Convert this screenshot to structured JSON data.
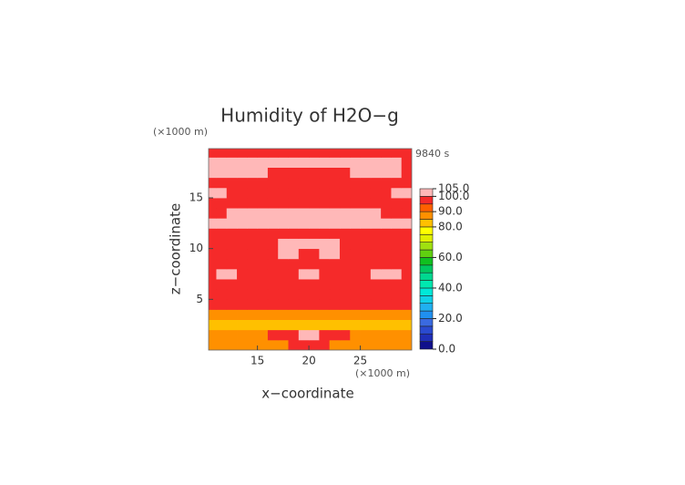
{
  "chart_data": {
    "type": "contour",
    "title": "Humidity of H2O−g",
    "time_label": "9840 s",
    "x_label": "x−coordinate",
    "y_label": "z−coordinate",
    "x_unit": "(×1000 m)",
    "y_unit": "(×1000 m)",
    "xlim": [
      10.25,
      30
    ],
    "ylim": [
      0,
      19.85
    ],
    "xticks": [
      15,
      20,
      25
    ],
    "yticks": [
      5,
      10,
      15
    ],
    "x": [
      10.5,
      11.5,
      12.5,
      13.5,
      14.5,
      15.5,
      16.5,
      17.5,
      18.5,
      19.5,
      20.5,
      21.5,
      22.5,
      23.5,
      24.5,
      25.5,
      26.5,
      27.5,
      28.5,
      29.5
    ],
    "y": [
      0.5,
      1.5,
      2.5,
      3.5,
      4.5,
      5.5,
      6.5,
      7.5,
      8.5,
      9.5,
      10.5,
      11.5,
      12.5,
      13.5,
      14.5,
      15.5,
      16.5,
      17.5,
      18.5,
      19.5
    ],
    "z": [
      [
        87,
        87,
        87,
        87,
        87,
        87,
        87,
        87,
        97,
        97,
        97,
        97,
        87,
        87,
        87,
        87,
        87,
        87,
        87,
        87
      ],
      [
        87,
        87,
        87,
        87,
        87,
        87,
        97,
        97,
        97,
        102,
        102,
        97,
        97,
        97,
        87,
        87,
        87,
        87,
        87,
        87
      ],
      [
        82,
        82,
        82,
        82,
        82,
        82,
        82,
        82,
        82,
        82,
        82,
        82,
        82,
        82,
        82,
        82,
        82,
        82,
        82,
        82
      ],
      [
        87,
        87,
        87,
        87,
        87,
        87,
        87,
        87,
        87,
        87,
        87,
        87,
        87,
        87,
        87,
        87,
        87,
        87,
        87,
        87
      ],
      [
        97,
        97,
        97,
        97,
        97,
        97,
        97,
        97,
        97,
        97,
        97,
        97,
        97,
        97,
        97,
        97,
        97,
        97,
        97,
        97
      ],
      [
        97,
        97,
        97,
        97,
        97,
        97,
        97,
        97,
        97,
        97,
        97,
        97,
        97,
        97,
        97,
        97,
        97,
        97,
        97,
        97
      ],
      [
        97,
        97,
        97,
        97,
        97,
        97,
        97,
        97,
        97,
        97,
        97,
        97,
        97,
        97,
        97,
        97,
        97,
        97,
        97,
        97
      ],
      [
        97,
        102,
        102,
        97,
        97,
        97,
        97,
        97,
        97,
        102,
        102,
        97,
        97,
        97,
        97,
        97,
        102,
        102,
        102,
        97
      ],
      [
        97,
        97,
        97,
        97,
        97,
        97,
        97,
        97,
        97,
        97,
        97,
        97,
        97,
        97,
        97,
        97,
        97,
        97,
        97,
        97
      ],
      [
        97,
        97,
        97,
        97,
        97,
        97,
        97,
        102,
        102,
        97,
        97,
        102,
        102,
        97,
        97,
        97,
        97,
        97,
        97,
        97
      ],
      [
        97,
        97,
        97,
        97,
        97,
        97,
        97,
        102,
        102,
        102,
        102,
        102,
        102,
        97,
        97,
        97,
        97,
        97,
        97,
        97
      ],
      [
        97,
        97,
        97,
        97,
        97,
        97,
        97,
        97,
        97,
        97,
        97,
        97,
        97,
        97,
        97,
        97,
        97,
        97,
        97,
        97
      ],
      [
        102,
        102,
        102,
        102,
        102,
        102,
        102,
        102,
        102,
        102,
        102,
        102,
        102,
        102,
        102,
        102,
        102,
        102,
        102,
        102
      ],
      [
        97,
        97,
        102,
        102,
        102,
        102,
        102,
        102,
        102,
        102,
        102,
        102,
        102,
        102,
        102,
        102,
        102,
        97,
        97,
        97
      ],
      [
        97,
        97,
        97,
        97,
        97,
        97,
        97,
        97,
        97,
        97,
        97,
        97,
        97,
        97,
        97,
        97,
        97,
        97,
        97,
        97
      ],
      [
        102,
        102,
        97,
        97,
        97,
        97,
        97,
        97,
        97,
        97,
        97,
        97,
        97,
        97,
        97,
        97,
        97,
        97,
        102,
        102
      ],
      [
        97,
        97,
        97,
        97,
        97,
        97,
        97,
        97,
        97,
        97,
        97,
        97,
        97,
        97,
        97,
        97,
        97,
        97,
        97,
        97
      ],
      [
        102,
        102,
        102,
        102,
        102,
        102,
        97,
        97,
        97,
        97,
        97,
        97,
        97,
        97,
        102,
        102,
        102,
        102,
        102,
        97
      ],
      [
        102,
        102,
        102,
        102,
        102,
        102,
        102,
        102,
        102,
        102,
        102,
        102,
        102,
        102,
        102,
        102,
        102,
        102,
        102,
        97
      ],
      [
        97,
        97,
        97,
        97,
        97,
        97,
        97,
        97,
        97,
        97,
        97,
        97,
        97,
        97,
        97,
        97,
        97,
        97,
        97,
        97
      ]
    ],
    "colorbar": {
      "levels": [
        0,
        5,
        10,
        15,
        20,
        25,
        30,
        35,
        40,
        45,
        50,
        55,
        60,
        65,
        70,
        75,
        80,
        85,
        90,
        95,
        100,
        105
      ],
      "colors": [
        "#10108c",
        "#1f2fb8",
        "#2a4ad0",
        "#3a6ae0",
        "#2090f0",
        "#20b0f0",
        "#10d0e8",
        "#00e8d8",
        "#00e8b0",
        "#00d890",
        "#00c860",
        "#10c020",
        "#60d010",
        "#a0e010",
        "#e0f000",
        "#ffff00",
        "#ffc000",
        "#ff9000",
        "#ff6000",
        "#f52a2a",
        "#ffb8b8"
      ],
      "ticks": [
        {
          "value": 0,
          "label": "0.0"
        },
        {
          "value": 20,
          "label": "20.0"
        },
        {
          "value": 40,
          "label": "40.0"
        },
        {
          "value": 60,
          "label": "60.0"
        },
        {
          "value": 80,
          "label": "80.0"
        },
        {
          "value": 90,
          "label": "90.0"
        },
        {
          "value": 100,
          "label": "100.0"
        },
        {
          "value": 105,
          "label": "105.0"
        }
      ]
    }
  }
}
